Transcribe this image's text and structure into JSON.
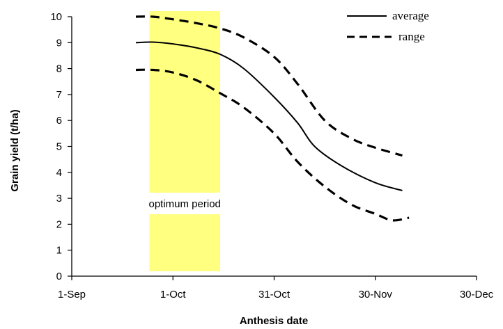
{
  "chart_data": {
    "type": "line",
    "title": "",
    "xlabel": "Anthesis date",
    "ylabel": "Grain yield (t/ha)",
    "x_axis": {
      "type": "date",
      "ticks": [
        {
          "date": "2000-09-01",
          "label": "1-Sep"
        },
        {
          "date": "2000-10-01",
          "label": "1-Oct"
        },
        {
          "date": "2000-10-31",
          "label": "31-Oct"
        },
        {
          "date": "2000-11-30",
          "label": "30-Nov"
        },
        {
          "date": "2000-12-30",
          "label": "30-Dec"
        }
      ],
      "range": [
        "2000-09-01",
        "2000-12-30"
      ]
    },
    "y_axis": {
      "range": [
        0,
        10
      ],
      "ticks": [
        0,
        1,
        2,
        3,
        4,
        5,
        6,
        7,
        8,
        9,
        10
      ]
    },
    "ylim": [
      0,
      10
    ],
    "grid": false,
    "legend": {
      "position": "top-right",
      "entries": [
        {
          "label": "average",
          "style": "solid"
        },
        {
          "label": "range",
          "style": "dashed"
        }
      ]
    },
    "highlight": {
      "label": "optimum period",
      "x_start": "2000-09-24",
      "x_end": "2000-10-15",
      "color": "#FFFF80"
    },
    "series": [
      {
        "name": "average",
        "style": "solid",
        "points": [
          {
            "x": "2000-09-20",
            "y": 9.0
          },
          {
            "x": "2000-09-25",
            "y": 9.02
          },
          {
            "x": "2000-10-01",
            "y": 8.95
          },
          {
            "x": "2000-10-08",
            "y": 8.8
          },
          {
            "x": "2000-10-15",
            "y": 8.55
          },
          {
            "x": "2000-10-22",
            "y": 8.0
          },
          {
            "x": "2000-10-31",
            "y": 6.9
          },
          {
            "x": "2000-11-07",
            "y": 5.9
          },
          {
            "x": "2000-11-12",
            "y": 5.0
          },
          {
            "x": "2000-11-20",
            "y": 4.25
          },
          {
            "x": "2000-11-30",
            "y": 3.6
          },
          {
            "x": "2000-12-08",
            "y": 3.3
          }
        ]
      },
      {
        "name": "range",
        "style": "dashed",
        "points": [
          {
            "x": "2000-09-20",
            "y": 10.0
          },
          {
            "x": "2000-09-25",
            "y": 10.0
          },
          {
            "x": "2000-10-01",
            "y": 9.9
          },
          {
            "x": "2000-10-08",
            "y": 9.75
          },
          {
            "x": "2000-10-15",
            "y": 9.55
          },
          {
            "x": "2000-10-22",
            "y": 9.2
          },
          {
            "x": "2000-10-31",
            "y": 8.45
          },
          {
            "x": "2000-11-07",
            "y": 7.4
          },
          {
            "x": "2000-11-15",
            "y": 6.0
          },
          {
            "x": "2000-11-23",
            "y": 5.3
          },
          {
            "x": "2000-11-30",
            "y": 4.95
          },
          {
            "x": "2000-12-08",
            "y": 4.65
          }
        ]
      },
      {
        "name": "range",
        "style": "dashed",
        "points": [
          {
            "x": "2000-09-20",
            "y": 7.95
          },
          {
            "x": "2000-09-25",
            "y": 7.95
          },
          {
            "x": "2000-10-01",
            "y": 7.85
          },
          {
            "x": "2000-10-08",
            "y": 7.55
          },
          {
            "x": "2000-10-15",
            "y": 7.05
          },
          {
            "x": "2000-10-22",
            "y": 6.5
          },
          {
            "x": "2000-10-31",
            "y": 5.5
          },
          {
            "x": "2000-11-07",
            "y": 4.4
          },
          {
            "x": "2000-11-15",
            "y": 3.45
          },
          {
            "x": "2000-11-23",
            "y": 2.75
          },
          {
            "x": "2000-11-30",
            "y": 2.4
          },
          {
            "x": "2000-12-05",
            "y": 2.15
          },
          {
            "x": "2000-12-10",
            "y": 2.25
          }
        ]
      }
    ]
  }
}
